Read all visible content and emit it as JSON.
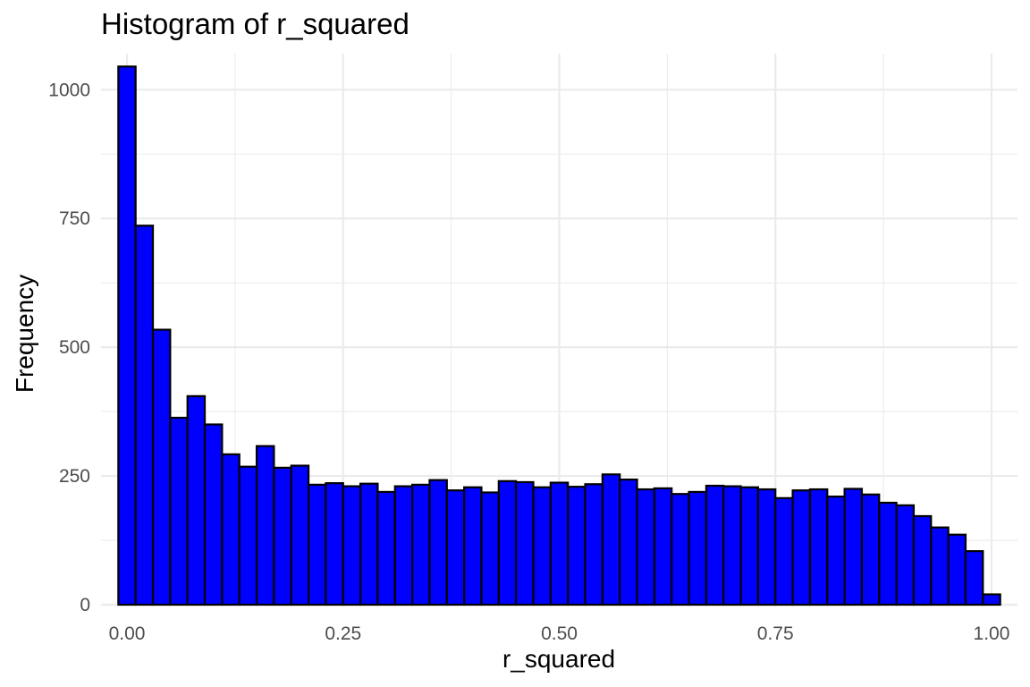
{
  "chart_data": {
    "type": "bar",
    "title": "Histogram of r_squared",
    "xlabel": "r_squared",
    "ylabel": "Frequency",
    "xlim": [
      -0.03,
      1.03
    ],
    "ylim": [
      0,
      1070
    ],
    "x_ticks": [
      0.0,
      0.25,
      0.5,
      0.75,
      1.0
    ],
    "x_tick_labels": [
      "0.00",
      "0.25",
      "0.50",
      "0.75",
      "1.00"
    ],
    "y_ticks": [
      0,
      250,
      500,
      750,
      1000
    ],
    "y_tick_labels": [
      "0",
      "250",
      "500",
      "750",
      "1000"
    ],
    "grid": true,
    "bins": 51,
    "bin_width": 0.02,
    "bin_start": -0.01,
    "bar_fill": "#0000ff",
    "bar_outline": "#000000",
    "values": [
      1045,
      736,
      534,
      363,
      405,
      350,
      292,
      268,
      308,
      266,
      270,
      233,
      236,
      230,
      235,
      219,
      230,
      233,
      242,
      222,
      228,
      218,
      240,
      238,
      228,
      237,
      229,
      234,
      253,
      243,
      224,
      226,
      215,
      219,
      231,
      230,
      228,
      224,
      207,
      222,
      224,
      210,
      225,
      214,
      198,
      193,
      172,
      150,
      136,
      104,
      20
    ]
  }
}
